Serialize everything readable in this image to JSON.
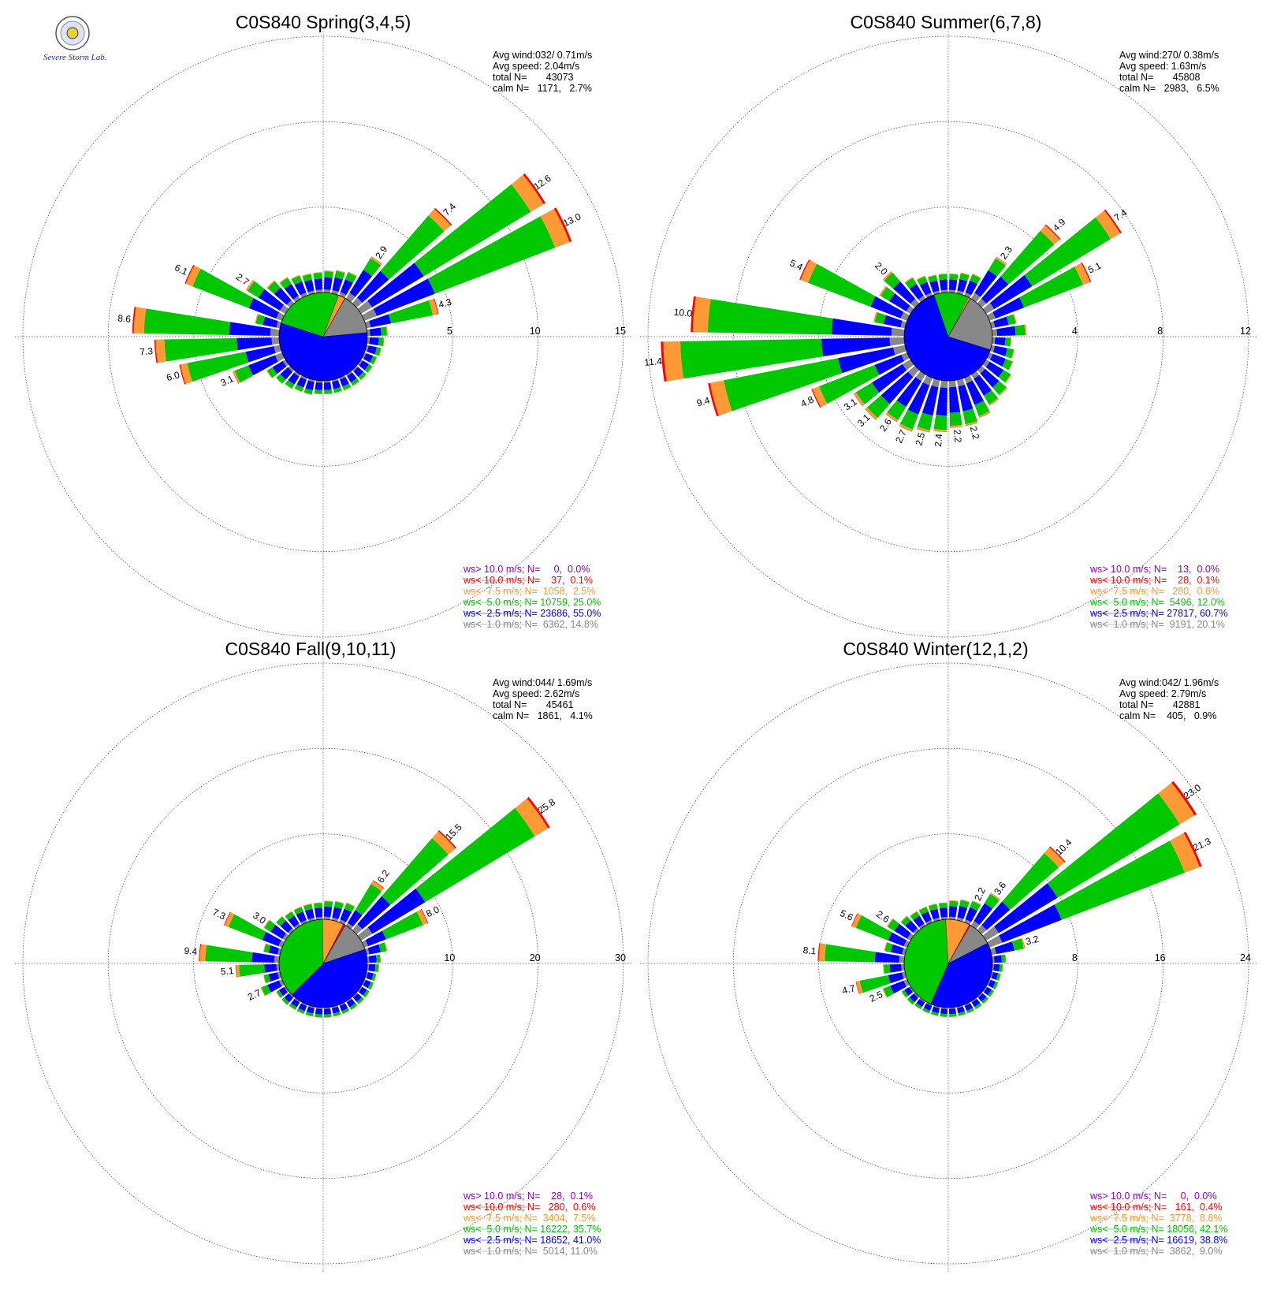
{
  "logo": {
    "text": "Severe Storm Lab."
  },
  "chart_data": [
    {
      "type": "windrose",
      "title": "C0S840 Spring(3,4,5)",
      "stats": [
        "Avg wind:032/ 0.71m/s",
        "Avg speed: 2.04m/s",
        "total N=       43073",
        "calm N=   1171,   2.7%"
      ],
      "rmax": 15,
      "ticks": [
        5,
        10,
        15
      ],
      "legend": [
        {
          "text": "ws> 10.0 m/s; N=     0,  0.0%",
          "color": "#8b00c8"
        },
        {
          "text": "ws< 10.0 m/s; N=    37,  0.1%",
          "color": "#ff0000"
        },
        {
          "text": "ws<  7.5 m/s; N=  1058,  2.5%",
          "color": "#ff9933"
        },
        {
          "text": "ws<  5.0 m/s; N= 10759, 25.0%",
          "color": "#00c800"
        },
        {
          "text": "ws<  2.5 m/s; N= 23686, 55.0%",
          "color": "#0000ff"
        },
        {
          "text": "ws<  1.0 m/s; N=  6362, 14.8%",
          "color": "#888888"
        }
      ],
      "pie": [
        14.8,
        55.0,
        25.0,
        2.5,
        0.1,
        0.0
      ],
      "bars": [
        {
          "dir": 5,
          "total": 1.3
        },
        {
          "dir": 15,
          "total": 1.4
        },
        {
          "dir": 25,
          "total": 1.5
        },
        {
          "dir": 35,
          "total": 2.9,
          "label": "2.9"
        },
        {
          "dir": 45,
          "total": 7.4,
          "label": "7.4"
        },
        {
          "dir": 55,
          "total": 12.6,
          "label": "12.6"
        },
        {
          "dir": 65,
          "total": 13.0,
          "label": "13.0"
        },
        {
          "dir": 75,
          "total": 4.3,
          "label": "4.3"
        },
        {
          "dir": 85,
          "total": 1.2
        },
        {
          "dir": 95,
          "total": 1.0
        },
        {
          "dir": 105,
          "total": 0.9
        },
        {
          "dir": 115,
          "total": 0.8
        },
        {
          "dir": 125,
          "total": 0.8
        },
        {
          "dir": 135,
          "total": 0.8
        },
        {
          "dir": 145,
          "total": 0.8
        },
        {
          "dir": 155,
          "total": 0.8
        },
        {
          "dir": 165,
          "total": 0.8
        },
        {
          "dir": 175,
          "total": 0.8
        },
        {
          "dir": 185,
          "total": 0.8
        },
        {
          "dir": 195,
          "total": 0.9
        },
        {
          "dir": 205,
          "total": 0.9
        },
        {
          "dir": 215,
          "total": 1.0
        },
        {
          "dir": 225,
          "total": 1.1
        },
        {
          "dir": 235,
          "total": 1.3
        },
        {
          "dir": 245,
          "total": 3.1,
          "label": "3.1"
        },
        {
          "dir": 255,
          "total": 6.0,
          "label": "6.0"
        },
        {
          "dir": 265,
          "total": 7.3,
          "label": "7.3"
        },
        {
          "dir": 275,
          "total": 8.6,
          "label": "8.6"
        },
        {
          "dir": 285,
          "total": 1.5
        },
        {
          "dir": 295,
          "total": 6.1,
          "label": "6.1"
        },
        {
          "dir": 305,
          "total": 2.7,
          "label": "2.7"
        },
        {
          "dir": 315,
          "total": 1.8
        },
        {
          "dir": 325,
          "total": 1.5
        },
        {
          "dir": 335,
          "total": 1.3
        },
        {
          "dir": 345,
          "total": 1.2
        },
        {
          "dir": 355,
          "total": 1.2
        }
      ]
    },
    {
      "type": "windrose",
      "title": "C0S840 Summer(6,7,8)",
      "stats": [
        "Avg wind:270/ 0.38m/s",
        "Avg speed: 1.63m/s",
        "total N=       45808",
        "calm N=   2983,   6.5%"
      ],
      "rmax": 12,
      "ticks": [
        4,
        8,
        12
      ],
      "legend": [
        {
          "text": "ws> 10.0 m/s; N=    13,  0.0%",
          "color": "#8b00c8"
        },
        {
          "text": "ws< 10.0 m/s; N=    28,  0.1%",
          "color": "#ff0000"
        },
        {
          "text": "ws<  7.5 m/s; N=   280,  0.6%",
          "color": "#ff9933"
        },
        {
          "text": "ws<  5.0 m/s; N=  5496, 12.0%",
          "color": "#00c800"
        },
        {
          "text": "ws<  2.5 m/s; N= 27817, 60.7%",
          "color": "#0000ff"
        },
        {
          "text": "ws<  1.0 m/s; N=  9191, 20.1%",
          "color": "#888888"
        }
      ],
      "pie": [
        20.1,
        60.7,
        12.0,
        0.6,
        0.1,
        0.0
      ],
      "bars": [
        {
          "dir": 5,
          "total": 0.9
        },
        {
          "dir": 15,
          "total": 1.0
        },
        {
          "dir": 25,
          "total": 1.1
        },
        {
          "dir": 35,
          "total": 2.3,
          "label": "2.3"
        },
        {
          "dir": 45,
          "total": 4.9,
          "label": "4.9"
        },
        {
          "dir": 55,
          "total": 7.4,
          "label": "7.4"
        },
        {
          "dir": 65,
          "total": 5.1,
          "label": "5.1"
        },
        {
          "dir": 75,
          "total": 1.2
        },
        {
          "dir": 85,
          "total": 1.6
        },
        {
          "dir": 95,
          "total": 0.9
        },
        {
          "dir": 105,
          "total": 1.1
        },
        {
          "dir": 115,
          "total": 1.2
        },
        {
          "dir": 125,
          "total": 1.4
        },
        {
          "dir": 135,
          "total": 1.6
        },
        {
          "dir": 145,
          "total": 1.7
        },
        {
          "dir": 155,
          "total": 2.0
        },
        {
          "dir": 165,
          "total": 2.2,
          "label": "2.2"
        },
        {
          "dir": 175,
          "total": 2.2,
          "label": "2.2"
        },
        {
          "dir": 185,
          "total": 2.4,
          "label": "2.4"
        },
        {
          "dir": 195,
          "total": 2.5,
          "label": "2.5"
        },
        {
          "dir": 205,
          "total": 2.7,
          "label": "2.7"
        },
        {
          "dir": 215,
          "total": 2.6,
          "label": "2.6"
        },
        {
          "dir": 225,
          "total": 3.1,
          "label": "3.1"
        },
        {
          "dir": 235,
          "total": 3.1,
          "label": "3.1"
        },
        {
          "dir": 245,
          "total": 4.8,
          "label": "4.8"
        },
        {
          "dir": 255,
          "total": 9.4,
          "label": "9.4"
        },
        {
          "dir": 265,
          "total": 11.4,
          "label": "11.4"
        },
        {
          "dir": 275,
          "total": 10.0,
          "label": "10.0"
        },
        {
          "dir": 285,
          "total": 1.5
        },
        {
          "dir": 295,
          "total": 5.4,
          "label": "5.4"
        },
        {
          "dir": 305,
          "total": 1.7
        },
        {
          "dir": 315,
          "total": 2.0,
          "label": "2.0"
        },
        {
          "dir": 325,
          "total": 1.2
        },
        {
          "dir": 335,
          "total": 1.0
        },
        {
          "dir": 345,
          "total": 0.9
        },
        {
          "dir": 355,
          "total": 0.9
        }
      ]
    },
    {
      "type": "windrose",
      "title": "C0S840 Fall(9,10,11)",
      "stats": [
        "Avg wind:044/ 1.69m/s",
        "Avg speed: 2.62m/s",
        "total N=       45461",
        "calm N=   1861,   4.1%"
      ],
      "rmax": 30,
      "ticks": [
        10,
        20,
        30
      ],
      "legend": [
        {
          "text": "ws> 10.0 m/s; N=    28,  0.1%",
          "color": "#8b00c8"
        },
        {
          "text": "ws< 10.0 m/s; N=   280,  0.6%",
          "color": "#ff0000"
        },
        {
          "text": "ws<  7.5 m/s; N=  3404,  7.5%",
          "color": "#ff9933"
        },
        {
          "text": "ws<  5.0 m/s; N= 16222, 35.7%",
          "color": "#00c800"
        },
        {
          "text": "ws<  2.5 m/s; N= 18652, 41.0%",
          "color": "#0000ff"
        },
        {
          "text": "ws<  1.0 m/s; N=  5014, 11.0%",
          "color": "#888888"
        }
      ],
      "pie": [
        11.0,
        41.0,
        35.7,
        7.5,
        0.6,
        0.1
      ],
      "bars": [
        {
          "dir": 5,
          "total": 2.2
        },
        {
          "dir": 15,
          "total": 2.3
        },
        {
          "dir": 25,
          "total": 2.5
        },
        {
          "dir": 35,
          "total": 6.2,
          "label": "6.2"
        },
        {
          "dir": 45,
          "total": 15.5,
          "label": "15.5"
        },
        {
          "dir": 55,
          "total": 25.8,
          "label": "25.8"
        },
        {
          "dir": 65,
          "total": 8.0,
          "label": "8.0"
        },
        {
          "dir": 75,
          "total": 2.5
        },
        {
          "dir": 85,
          "total": 1.6
        },
        {
          "dir": 95,
          "total": 1.4
        },
        {
          "dir": 105,
          "total": 1.2
        },
        {
          "dir": 115,
          "total": 1.2
        },
        {
          "dir": 125,
          "total": 1.2
        },
        {
          "dir": 135,
          "total": 1.2
        },
        {
          "dir": 145,
          "total": 1.2
        },
        {
          "dir": 155,
          "total": 1.2
        },
        {
          "dir": 165,
          "total": 1.2
        },
        {
          "dir": 175,
          "total": 1.2
        },
        {
          "dir": 185,
          "total": 1.2
        },
        {
          "dir": 195,
          "total": 1.2
        },
        {
          "dir": 205,
          "total": 1.2
        },
        {
          "dir": 215,
          "total": 1.2
        },
        {
          "dir": 225,
          "total": 1.3
        },
        {
          "dir": 235,
          "total": 1.3
        },
        {
          "dir": 245,
          "total": 2.7,
          "label": "2.7"
        },
        {
          "dir": 255,
          "total": 2.0
        },
        {
          "dir": 265,
          "total": 5.1,
          "label": "5.1"
        },
        {
          "dir": 275,
          "total": 9.4,
          "label": "9.4"
        },
        {
          "dir": 285,
          "total": 2.0
        },
        {
          "dir": 295,
          "total": 7.3,
          "label": "7.3"
        },
        {
          "dir": 305,
          "total": 3.0,
          "label": "3.0"
        },
        {
          "dir": 315,
          "total": 2.2
        },
        {
          "dir": 325,
          "total": 2.0
        },
        {
          "dir": 335,
          "total": 2.0
        },
        {
          "dir": 345,
          "total": 2.0
        },
        {
          "dir": 355,
          "total": 2.0
        }
      ]
    },
    {
      "type": "windrose",
      "title": "C0S840 Winter(12,1,2)",
      "stats": [
        "Avg wind:042/ 1.96m/s",
        "Avg speed: 2.79m/s",
        "total N=       42881",
        "calm N=    405,   0.9%"
      ],
      "rmax": 24,
      "ticks": [
        8,
        16,
        24
      ],
      "legend": [
        {
          "text": "ws> 10.0 m/s; N=     0,  0.0%",
          "color": "#8b00c8"
        },
        {
          "text": "ws< 10.0 m/s; N=   161,  0.4%",
          "color": "#ff0000"
        },
        {
          "text": "ws<  7.5 m/s; N=  3778,  8.8%",
          "color": "#ff9933"
        },
        {
          "text": "ws<  5.0 m/s; N= 18056, 42.1%",
          "color": "#00c800"
        },
        {
          "text": "ws<  2.5 m/s; N= 16619, 38.8%",
          "color": "#0000ff"
        },
        {
          "text": "ws<  1.0 m/s; N=  3862,  9.0%",
          "color": "#888888"
        }
      ],
      "pie": [
        9.0,
        38.8,
        42.1,
        8.8,
        0.4,
        0.0
      ],
      "bars": [
        {
          "dir": 5,
          "total": 1.8
        },
        {
          "dir": 15,
          "total": 2.0
        },
        {
          "dir": 25,
          "total": 2.2,
          "label": "2.2"
        },
        {
          "dir": 35,
          "total": 3.6,
          "label": "3.6"
        },
        {
          "dir": 45,
          "total": 10.4,
          "label": "10.4"
        },
        {
          "dir": 55,
          "total": 23.0,
          "label": "23.0"
        },
        {
          "dir": 65,
          "total": 21.3,
          "label": "21.3"
        },
        {
          "dir": 75,
          "total": 3.2,
          "label": "3.2"
        },
        {
          "dir": 85,
          "total": 1.3
        },
        {
          "dir": 95,
          "total": 1.0
        },
        {
          "dir": 105,
          "total": 0.9
        },
        {
          "dir": 115,
          "total": 0.9
        },
        {
          "dir": 125,
          "total": 0.9
        },
        {
          "dir": 135,
          "total": 0.9
        },
        {
          "dir": 145,
          "total": 0.9
        },
        {
          "dir": 155,
          "total": 0.9
        },
        {
          "dir": 165,
          "total": 0.9
        },
        {
          "dir": 175,
          "total": 0.9
        },
        {
          "dir": 185,
          "total": 0.9
        },
        {
          "dir": 195,
          "total": 0.9
        },
        {
          "dir": 205,
          "total": 0.9
        },
        {
          "dir": 215,
          "total": 0.9
        },
        {
          "dir": 225,
          "total": 1.0
        },
        {
          "dir": 235,
          "total": 1.0
        },
        {
          "dir": 245,
          "total": 2.5,
          "label": "2.5"
        },
        {
          "dir": 255,
          "total": 4.7,
          "label": "4.7"
        },
        {
          "dir": 265,
          "total": 2.0
        },
        {
          "dir": 275,
          "total": 8.1,
          "label": "8.1"
        },
        {
          "dir": 285,
          "total": 2.0
        },
        {
          "dir": 295,
          "total": 5.6,
          "label": "5.6"
        },
        {
          "dir": 305,
          "total": 2.6,
          "label": "2.6"
        },
        {
          "dir": 315,
          "total": 1.8
        },
        {
          "dir": 325,
          "total": 1.6
        },
        {
          "dir": 335,
          "total": 1.6
        },
        {
          "dir": 345,
          "total": 1.6
        },
        {
          "dir": 355,
          "total": 1.6
        }
      ]
    }
  ]
}
